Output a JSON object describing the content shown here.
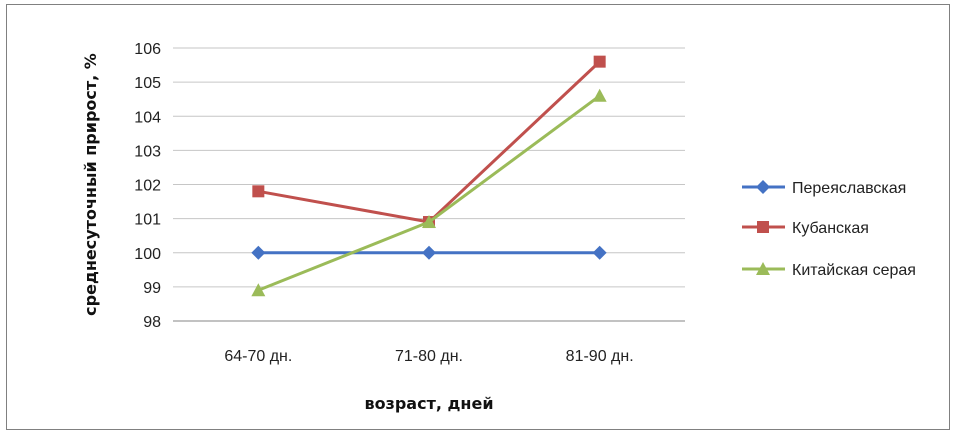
{
  "chart_data": {
    "type": "line",
    "categories": [
      "64-70 дн.",
      "71-80 дн.",
      "81-90 дн."
    ],
    "series": [
      {
        "name": "Переяславская",
        "values": [
          100,
          100,
          100
        ],
        "color": "#4472C4",
        "marker": "diamond"
      },
      {
        "name": "Кубанская",
        "values": [
          101.8,
          100.9,
          105.6
        ],
        "color": "#C0504D",
        "marker": "square"
      },
      {
        "name": "Китайская серая",
        "values": [
          98.9,
          100.9,
          104.6
        ],
        "color": "#9BBB59",
        "marker": "triangle"
      }
    ],
    "title": "",
    "xlabel": "возраст, дней",
    "ylabel": "среднесуточный  прирост, %",
    "ylim": [
      98,
      106
    ],
    "yticks": [
      "98",
      "99",
      "100",
      "101",
      "102",
      "103",
      "104",
      "105",
      "106"
    ],
    "grid": "horizontal",
    "legend_position": "right"
  }
}
